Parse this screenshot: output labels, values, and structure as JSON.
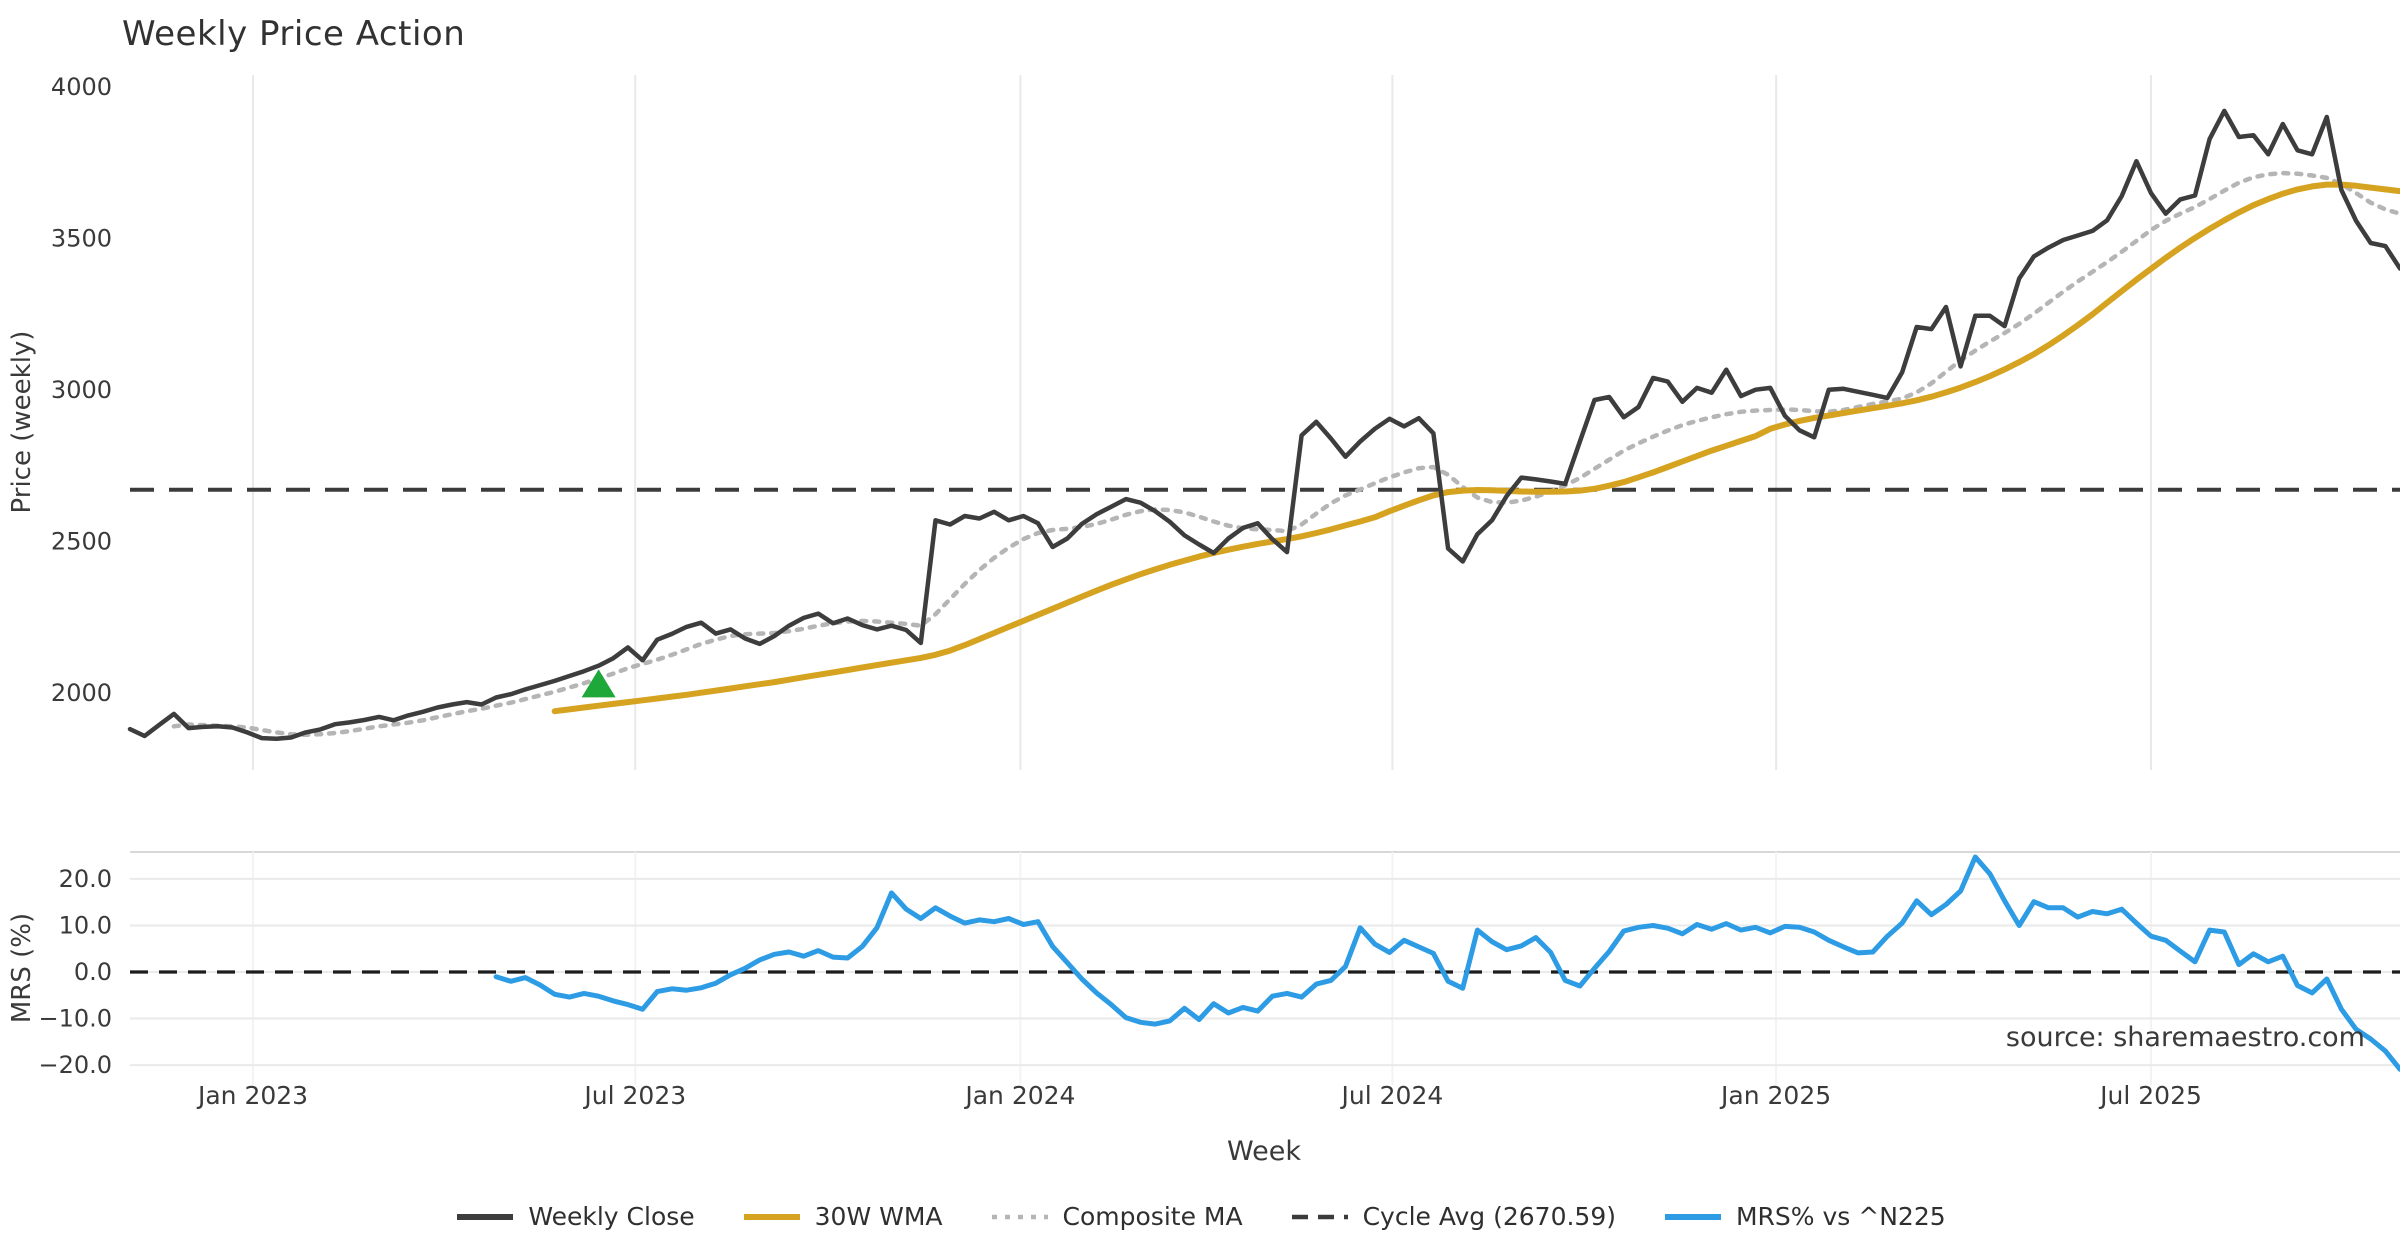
{
  "page": {
    "title": "Weekly Price Action",
    "watermark": "source: sharemaestro.com",
    "background": "#ffffff"
  },
  "chart_data": [
    {
      "id": "price-panel",
      "type": "line",
      "title": "Weekly Price Action",
      "ylabel": "Price (weekly)",
      "xlabel": "Week",
      "ylim": [
        1746,
        4040
      ],
      "ytick_values": [
        4000,
        3500,
        3000,
        2500,
        2000
      ],
      "ytick_labels": [
        "4000",
        "3500",
        "3000",
        "2500",
        "2000"
      ],
      "xlim_weeks": [
        0,
        155
      ],
      "xticks": [
        {
          "label": "Jan 2023",
          "week": 8.4
        },
        {
          "label": "Jul 2023",
          "week": 34.5
        },
        {
          "label": "Jan 2024",
          "week": 60.8
        },
        {
          "label": "Jul 2024",
          "week": 86.2
        },
        {
          "label": "Jan 2025",
          "week": 112.4
        },
        {
          "label": "Jul 2025",
          "week": 138.0
        }
      ],
      "grid": "vertical-only",
      "cycle_avg": 2670.59,
      "marker": {
        "symbol": "triangle-up",
        "color": "#1fa83a",
        "week": 32,
        "value": 2025
      },
      "series": [
        {
          "name": "Weekly Close",
          "color": "#3d3d3d",
          "style": "solid",
          "width": 4.5,
          "start_week": 0,
          "values": [
            1881,
            1858,
            1895,
            1931,
            1884,
            1888,
            1890,
            1886,
            1870,
            1851,
            1849,
            1853,
            1870,
            1880,
            1897,
            1903,
            1911,
            1921,
            1910,
            1926,
            1938,
            1952,
            1962,
            1970,
            1962,
            1985,
            1996,
            2012,
            2026,
            2040,
            2056,
            2072,
            2090,
            2115,
            2150,
            2108,
            2176,
            2195,
            2218,
            2232,
            2196,
            2210,
            2180,
            2162,
            2188,
            2222,
            2248,
            2262,
            2230,
            2246,
            2224,
            2210,
            2222,
            2208,
            2165,
            2570,
            2556,
            2584,
            2576,
            2598,
            2570,
            2584,
            2560,
            2482,
            2510,
            2558,
            2590,
            2615,
            2640,
            2628,
            2600,
            2565,
            2520,
            2490,
            2462,
            2510,
            2545,
            2560,
            2508,
            2465,
            2850,
            2895,
            2840,
            2780,
            2830,
            2872,
            2905,
            2880,
            2907,
            2857,
            2477,
            2434,
            2524,
            2570,
            2650,
            2711,
            2705,
            2698,
            2690,
            2830,
            2967,
            2977,
            2910,
            2944,
            3040,
            3028,
            2961,
            3007,
            2991,
            3067,
            2980,
            3001,
            3007,
            2915,
            2867,
            2844,
            3001,
            3004,
            2994,
            2984,
            2974,
            3058,
            3208,
            3201,
            3274,
            3078,
            3245,
            3245,
            3211,
            3368,
            3441,
            3470,
            3495,
            3510,
            3525,
            3560,
            3640,
            3755,
            3650,
            3582,
            3629,
            3642,
            3828,
            3921,
            3835,
            3841,
            3778,
            3878,
            3791,
            3778,
            3901,
            3660,
            3558,
            3485,
            3475,
            3401
          ]
        },
        {
          "name": "30W WMA",
          "color": "#d6a321",
          "style": "solid",
          "width": 6,
          "start_week": 29,
          "values": [
            1940,
            1946,
            1952,
            1958,
            1964,
            1970,
            1976,
            1982,
            1988,
            1994,
            2001,
            2008,
            2015,
            2022,
            2029,
            2036,
            2044,
            2052,
            2060,
            2068,
            2076,
            2084,
            2092,
            2100,
            2108,
            2116,
            2126,
            2140,
            2158,
            2178,
            2198,
            2218,
            2238,
            2258,
            2278,
            2298,
            2318,
            2338,
            2357,
            2375,
            2392,
            2408,
            2423,
            2437,
            2450,
            2462,
            2473,
            2483,
            2492,
            2500,
            2508,
            2517,
            2528,
            2540,
            2553,
            2566,
            2580,
            2600,
            2618,
            2636,
            2652,
            2663,
            2668,
            2670,
            2669,
            2667,
            2665,
            2664,
            2664,
            2665,
            2668,
            2674,
            2684,
            2696,
            2712,
            2728,
            2746,
            2764,
            2782,
            2800,
            2816,
            2832,
            2848,
            2872,
            2886,
            2898,
            2908,
            2916,
            2924,
            2932,
            2940,
            2948,
            2956,
            2966,
            2978,
            2992,
            3008,
            3026,
            3046,
            3068,
            3092,
            3118,
            3148,
            3180,
            3214,
            3250,
            3288,
            3326,
            3364,
            3400,
            3436,
            3470,
            3502,
            3532,
            3560,
            3586,
            3610,
            3630,
            3648,
            3662,
            3672,
            3678,
            3678,
            3674,
            3668,
            3662,
            3656
          ]
        },
        {
          "name": "Composite MA",
          "color": "#b5b5b5",
          "style": "dotted",
          "width": 4.5,
          "start_week": 3,
          "values": [
            1890,
            1896,
            1894,
            1892,
            1890,
            1886,
            1878,
            1870,
            1864,
            1862,
            1864,
            1868,
            1874,
            1882,
            1890,
            1896,
            1902,
            1910,
            1920,
            1930,
            1940,
            1948,
            1958,
            1968,
            1980,
            1992,
            2004,
            2018,
            2032,
            2048,
            2064,
            2082,
            2096,
            2110,
            2126,
            2144,
            2162,
            2176,
            2188,
            2194,
            2196,
            2198,
            2204,
            2212,
            2222,
            2230,
            2236,
            2238,
            2236,
            2232,
            2228,
            2222,
            2260,
            2310,
            2360,
            2406,
            2446,
            2480,
            2508,
            2528,
            2538,
            2542,
            2548,
            2558,
            2572,
            2588,
            2600,
            2606,
            2604,
            2596,
            2582,
            2566,
            2552,
            2544,
            2540,
            2538,
            2534,
            2556,
            2592,
            2626,
            2652,
            2672,
            2692,
            2712,
            2728,
            2742,
            2746,
            2720,
            2680,
            2645,
            2630,
            2628,
            2635,
            2648,
            2665,
            2685,
            2710,
            2740,
            2770,
            2800,
            2824,
            2846,
            2866,
            2884,
            2898,
            2910,
            2920,
            2928,
            2932,
            2934,
            2936,
            2934,
            2930,
            2928,
            2934,
            2944,
            2954,
            2962,
            2972,
            2992,
            3022,
            3060,
            3098,
            3130,
            3160,
            3188,
            3218,
            3252,
            3288,
            3324,
            3358,
            3390,
            3422,
            3456,
            3492,
            3528,
            3558,
            3582,
            3604,
            3630,
            3658,
            3684,
            3702,
            3712,
            3716,
            3714,
            3708,
            3700,
            3680,
            3650,
            3618,
            3596,
            3582
          ]
        },
        {
          "name": "Cycle Avg",
          "color": "#3b3b3b",
          "style": "dashed",
          "width": 4,
          "value": 2670.59
        }
      ]
    },
    {
      "id": "mrs-panel",
      "type": "line",
      "ylabel": "MRS (%)",
      "ylim": [
        -24.3,
        25.8
      ],
      "ytick_values": [
        20,
        10,
        0,
        -10,
        -20
      ],
      "ytick_labels": [
        "20.0",
        "10.0",
        "0.0",
        "−10.0",
        "−20.0"
      ],
      "zero_line": true,
      "grid": "horizontal",
      "series": [
        {
          "name": "MRS% vs ^N225",
          "color": "#2d9ce5",
          "style": "solid",
          "width": 5,
          "start_week": 25,
          "values": [
            -1.0,
            -2.0,
            -1.2,
            -2.8,
            -4.8,
            -5.4,
            -4.6,
            -5.2,
            -6.2,
            -7.0,
            -8.0,
            -4.2,
            -3.6,
            -3.9,
            -3.4,
            -2.4,
            -0.6,
            0.8,
            2.6,
            3.8,
            4.3,
            3.4,
            4.6,
            3.2,
            3.0,
            5.5,
            9.5,
            17.0,
            13.5,
            11.5,
            13.8,
            12.0,
            10.5,
            11.2,
            10.8,
            11.5,
            10.2,
            10.8,
            5.5,
            2.0,
            -1.5,
            -4.5,
            -7.0,
            -9.8,
            -10.8,
            -11.2,
            -10.5,
            -7.8,
            -10.2,
            -6.8,
            -8.8,
            -7.6,
            -8.4,
            -5.2,
            -4.6,
            -5.4,
            -2.6,
            -1.8,
            1.2,
            9.5,
            6.0,
            4.2,
            6.8,
            5.4,
            4.0,
            -2.0,
            -3.5,
            9.0,
            6.5,
            4.8,
            5.6,
            7.4,
            4.2,
            -1.8,
            -3.0,
            0.8,
            4.4,
            8.8,
            9.6,
            10.0,
            9.4,
            8.2,
            10.2,
            9.2,
            10.4,
            9.0,
            9.6,
            8.4,
            9.8,
            9.6,
            8.6,
            6.8,
            5.4,
            4.1,
            4.3,
            7.7,
            10.5,
            15.3,
            12.3,
            14.5,
            17.4,
            24.7,
            21.1,
            15.3,
            10.0,
            15.1,
            13.8,
            13.8,
            11.8,
            13.0,
            12.5,
            13.5,
            10.5,
            7.7,
            6.8,
            4.5,
            2.2,
            9.0,
            8.6,
            1.6,
            3.9,
            2.2,
            3.4,
            -2.9,
            -4.5,
            -1.5,
            -8.0,
            -12.3,
            -14.4,
            -17.0,
            -20.9
          ]
        }
      ]
    }
  ],
  "legend": {
    "items": [
      {
        "label": "Weekly Close",
        "color": "#3d3d3d",
        "style": "solid"
      },
      {
        "label": "30W WMA",
        "color": "#d6a321",
        "style": "solid"
      },
      {
        "label": "Composite MA",
        "color": "#b5b5b5",
        "style": "dotted"
      },
      {
        "label": "Cycle Avg (2670.59)",
        "color": "#3b3b3b",
        "style": "dashed"
      },
      {
        "label": "MRS% vs ^N225",
        "color": "#2d9ce5",
        "style": "solid"
      }
    ]
  }
}
